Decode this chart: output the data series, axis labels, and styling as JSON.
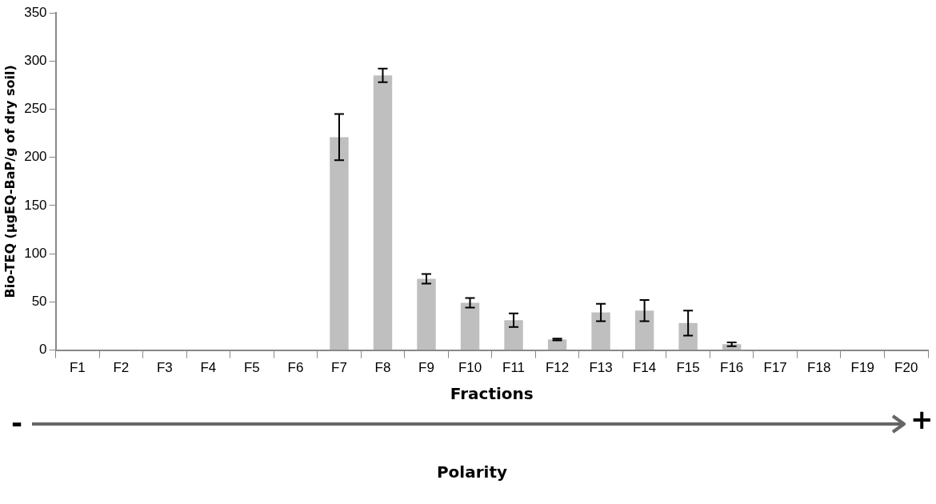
{
  "chart_data": {
    "type": "bar",
    "xlabel": "Fractions",
    "ylabel": "Bio-TEQ (µgEQ-BaP/g of dry soil)",
    "categories": [
      "F1",
      "F2",
      "F3",
      "F4",
      "F5",
      "F6",
      "F7",
      "F8",
      "F9",
      "F10",
      "F11",
      "F12",
      "F13",
      "F14",
      "F15",
      "F16",
      "F17",
      "F18",
      "F19",
      "F20"
    ],
    "values": [
      0,
      0,
      0,
      0,
      0,
      0,
      221,
      285,
      74,
      49,
      31,
      11,
      39,
      41,
      28,
      6,
      0,
      0,
      0,
      0
    ],
    "errors": [
      null,
      null,
      null,
      null,
      null,
      null,
      24,
      7,
      5,
      5,
      7,
      1,
      9,
      11,
      13,
      2,
      null,
      null,
      null,
      null
    ],
    "color": "#bfbfbf",
    "ylim": [
      0,
      350
    ],
    "yticks": [
      0,
      50,
      100,
      150,
      200,
      250,
      300,
      350
    ],
    "grid": false,
    "legend": false,
    "annotations": [
      "-",
      "+",
      "Polarity"
    ]
  }
}
